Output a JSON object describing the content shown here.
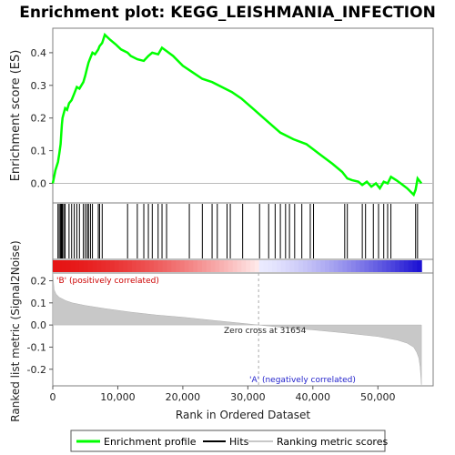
{
  "chart_data": {
    "type": "line",
    "title": "Enrichment plot: KEGG_LEISHMANIA_INFECTION",
    "es_panel": {
      "ylabel": "Enrichment score (ES)",
      "ylim": [
        -0.06,
        0.475
      ],
      "yticks": [
        "0.0",
        "0.1",
        "0.2",
        "0.3",
        "0.4"
      ],
      "yticks_values": [
        0.0,
        0.1,
        0.2,
        0.3,
        0.4
      ],
      "line_color": "#00ff00",
      "profile": {
        "x": [
          0,
          400,
          800,
          1000,
          1200,
          1300,
          1400,
          1500,
          1700,
          1900,
          2200,
          2500,
          2900,
          3300,
          3700,
          4100,
          4700,
          5000,
          5300,
          5500,
          5800,
          6100,
          6500,
          7000,
          7200,
          7600,
          8000,
          8800,
          9700,
          10500,
          11500,
          12000,
          13000,
          14000,
          14700,
          15300,
          16200,
          16800,
          17500,
          18500,
          20000,
          21500,
          23000,
          24500,
          26000,
          27500,
          29000,
          31000,
          33000,
          35000,
          37000,
          39000,
          40000,
          41000,
          43000,
          44500,
          45300,
          46000,
          47000,
          47600,
          48300,
          49000,
          49700,
          50300,
          50900,
          51500,
          52000,
          52800,
          53500,
          54500,
          55500,
          55800,
          56100,
          56700
        ],
        "y": [
          0.0,
          0.04,
          0.065,
          0.09,
          0.12,
          0.15,
          0.18,
          0.2,
          0.215,
          0.23,
          0.225,
          0.245,
          0.255,
          0.275,
          0.295,
          0.29,
          0.31,
          0.33,
          0.355,
          0.37,
          0.385,
          0.4,
          0.395,
          0.41,
          0.42,
          0.43,
          0.455,
          0.44,
          0.425,
          0.41,
          0.4,
          0.39,
          0.38,
          0.375,
          0.39,
          0.4,
          0.395,
          0.415,
          0.405,
          0.39,
          0.36,
          0.34,
          0.32,
          0.31,
          0.295,
          0.28,
          0.26,
          0.225,
          0.19,
          0.155,
          0.135,
          0.12,
          0.105,
          0.09,
          0.06,
          0.035,
          0.015,
          0.01,
          0.005,
          -0.005,
          0.005,
          -0.01,
          0.0,
          -0.015,
          0.005,
          0.0,
          0.02,
          0.01,
          0.0,
          -0.015,
          -0.035,
          -0.02,
          0.015,
          0.0
        ]
      }
    },
    "hits": [
      800,
      1000,
      1200,
      1300,
      1400,
      1500,
      1700,
      1900,
      2500,
      2900,
      3300,
      3700,
      4100,
      4700,
      5000,
      5300,
      5500,
      5800,
      6100,
      7000,
      7200,
      7600,
      11500,
      13000,
      14000,
      14700,
      15300,
      16200,
      16800,
      17500,
      21000,
      23000,
      24500,
      25300,
      26800,
      27300,
      29200,
      31800,
      33200,
      34200,
      35000,
      35800,
      36400,
      37200,
      38300,
      39600,
      40100,
      44900,
      45300,
      47600,
      48100,
      49300,
      50100,
      50900,
      51500,
      52000,
      55800,
      56100
    ],
    "ranking_panel": {
      "ylabel": "Ranked list metric (Signal2Noise)",
      "ylim": [
        -0.275,
        0.235
      ],
      "yticks": [
        "0.2",
        "0.1",
        "0.0",
        "-0.1",
        "-0.2"
      ],
      "yticks_values": [
        0.2,
        0.1,
        0.0,
        -0.1,
        -0.2
      ],
      "xlabel": "Rank in Ordered Dataset",
      "xlim": [
        0,
        58500
      ],
      "xticks": [
        "0",
        "10,000",
        "20,000",
        "30,000",
        "40,000",
        "50,000"
      ],
      "xticks_values": [
        0,
        10000,
        20000,
        30000,
        40000,
        50000
      ],
      "n_genes": 56700,
      "zero_cross": 31654,
      "zero_cross_label": "Zero cross at 31654",
      "positive_label": "'B' (positively correlated)",
      "negative_label": "'A' (negatively correlated)",
      "metric": {
        "rank": [
          0,
          200,
          500,
          1000,
          2000,
          3000,
          5000,
          8000,
          12000,
          16000,
          20000,
          25000,
          30000,
          31654,
          35000,
          40000,
          45000,
          50000,
          53000,
          54500,
          55500,
          56000,
          56300,
          56500,
          56700
        ],
        "value": [
          0.24,
          0.16,
          0.14,
          0.125,
          0.11,
          0.1,
          0.088,
          0.074,
          0.058,
          0.045,
          0.035,
          0.02,
          0.005,
          0.0,
          -0.01,
          -0.022,
          -0.036,
          -0.052,
          -0.068,
          -0.082,
          -0.1,
          -0.125,
          -0.15,
          -0.19,
          -0.27
        ]
      }
    },
    "legend": [
      {
        "label": "Enrichment profile",
        "color": "#00ff00"
      },
      {
        "label": "Hits",
        "color": "#000000"
      },
      {
        "label": "Ranking metric scores",
        "color": "#c8c8c8"
      }
    ]
  }
}
